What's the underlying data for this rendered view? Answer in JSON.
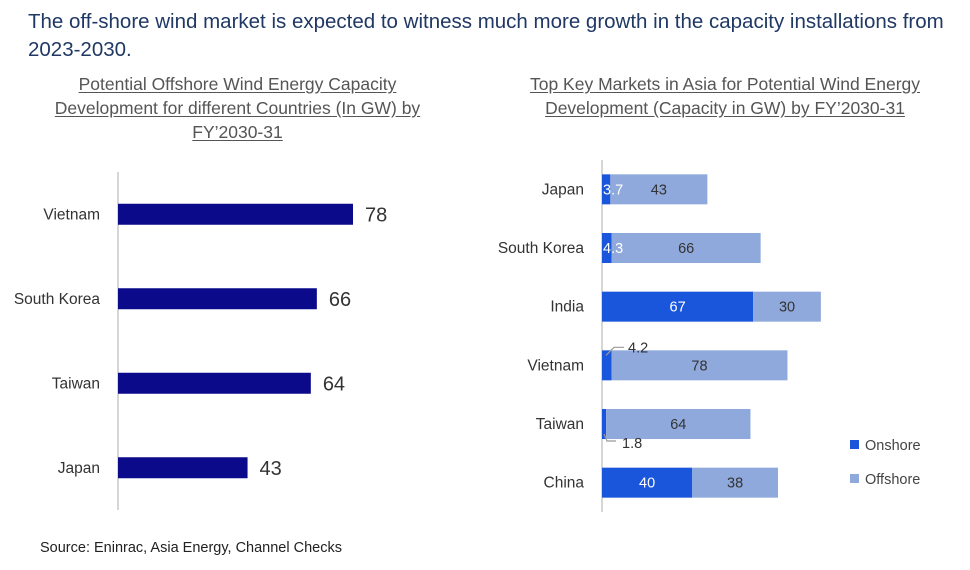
{
  "headline": "The off-shore wind market is expected to witness much more growth in the capacity installations from 2023-2030.",
  "source": "Source: Eninrac, Asia Energy, Channel Checks",
  "colors": {
    "left_bar": "#0a0a8a",
    "onshore": "#1a56db",
    "offshore": "#8fa9dc",
    "axis": "#c8c8c8",
    "leader": "#999999"
  },
  "chart_data": [
    {
      "type": "bar",
      "orientation": "horizontal",
      "title": "Potential Offshore Wind Energy Capacity Development for different Countries (In GW) by FY’2030-31",
      "categories": [
        "Vietnam",
        "South Korea",
        "Taiwan",
        "Japan"
      ],
      "values": [
        78,
        66,
        64,
        43
      ],
      "value_labels": [
        "78",
        "66",
        "64",
        "43"
      ],
      "xlim": [
        0,
        80
      ],
      "grid": false
    },
    {
      "type": "bar",
      "orientation": "horizontal",
      "stacked": true,
      "title": "Top Key Markets in Asia for Potential Wind Energy Development (Capacity in GW) by FY’2030-31",
      "categories": [
        "Japan",
        "South Korea",
        "India",
        "Vietnam",
        "Taiwan",
        "China"
      ],
      "series": [
        {
          "name": "Onshore",
          "values": [
            3.7,
            4.3,
            67,
            4.2,
            1.8,
            40
          ],
          "labels": [
            "3.7",
            "4.3",
            "67",
            "4.2",
            "1.8",
            "40"
          ]
        },
        {
          "name": "Offshore",
          "values": [
            43,
            66,
            30,
            78,
            64,
            38
          ],
          "labels": [
            "43",
            "66",
            "30",
            "78",
            "64",
            "38"
          ]
        }
      ],
      "xlim": [
        0,
        100
      ],
      "legend": "bottom-right",
      "grid": false
    }
  ]
}
